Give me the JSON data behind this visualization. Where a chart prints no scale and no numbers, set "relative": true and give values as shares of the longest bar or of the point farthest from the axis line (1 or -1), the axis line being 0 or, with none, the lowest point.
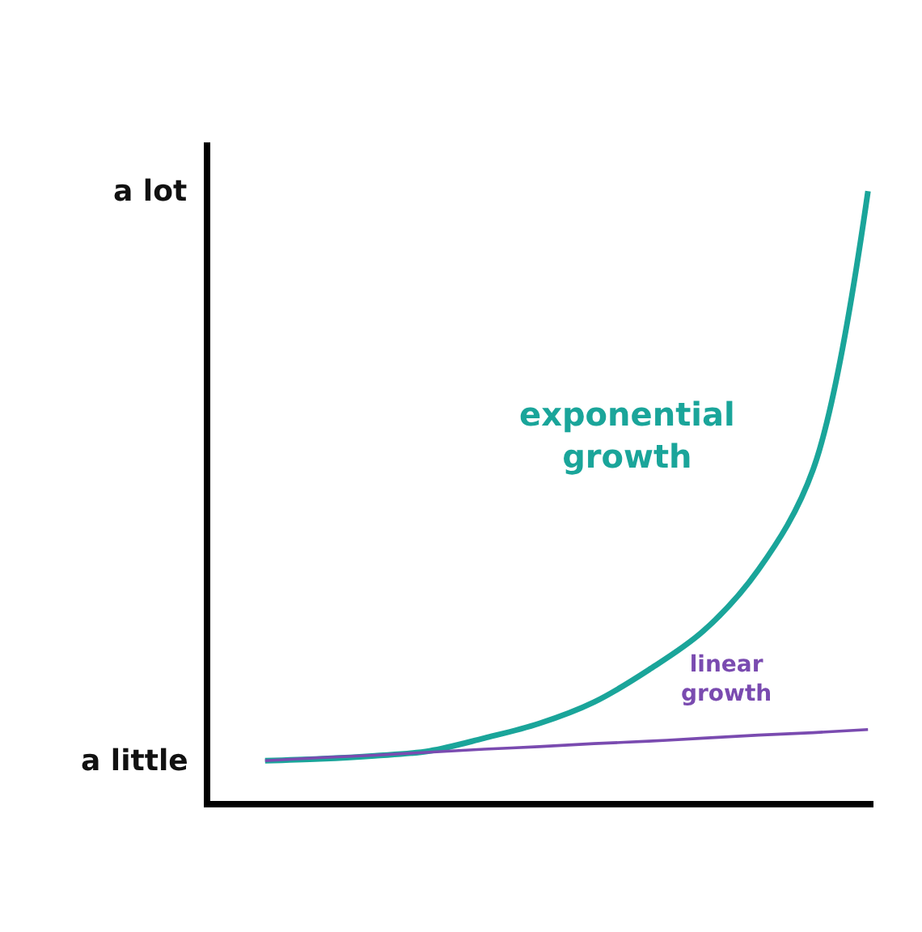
{
  "chart_data": {
    "type": "line",
    "relative": true,
    "categories": [
      null,
      null,
      null,
      null,
      null,
      null,
      null,
      null,
      null,
      null,
      null,
      null
    ],
    "series": [
      {
        "name": "exponential growth",
        "color": "#1aa59a",
        "values": [
          0.066,
          0.069,
          0.074,
          0.082,
          0.103,
          0.127,
          0.162,
          0.215,
          0.279,
          0.379,
          0.544,
          1
        ]
      },
      {
        "name": "linear growth",
        "color": "#7a4bb0",
        "values": [
          0.066,
          0.071,
          0.075,
          0.08,
          0.085,
          0.089,
          0.094,
          0.098,
          0.103,
          0.108,
          0.112,
          0.117
        ]
      }
    ],
    "annotations": [
      "a lot",
      "a little"
    ],
    "legend": false,
    "marker": "none",
    "line_style": "solid"
  }
}
